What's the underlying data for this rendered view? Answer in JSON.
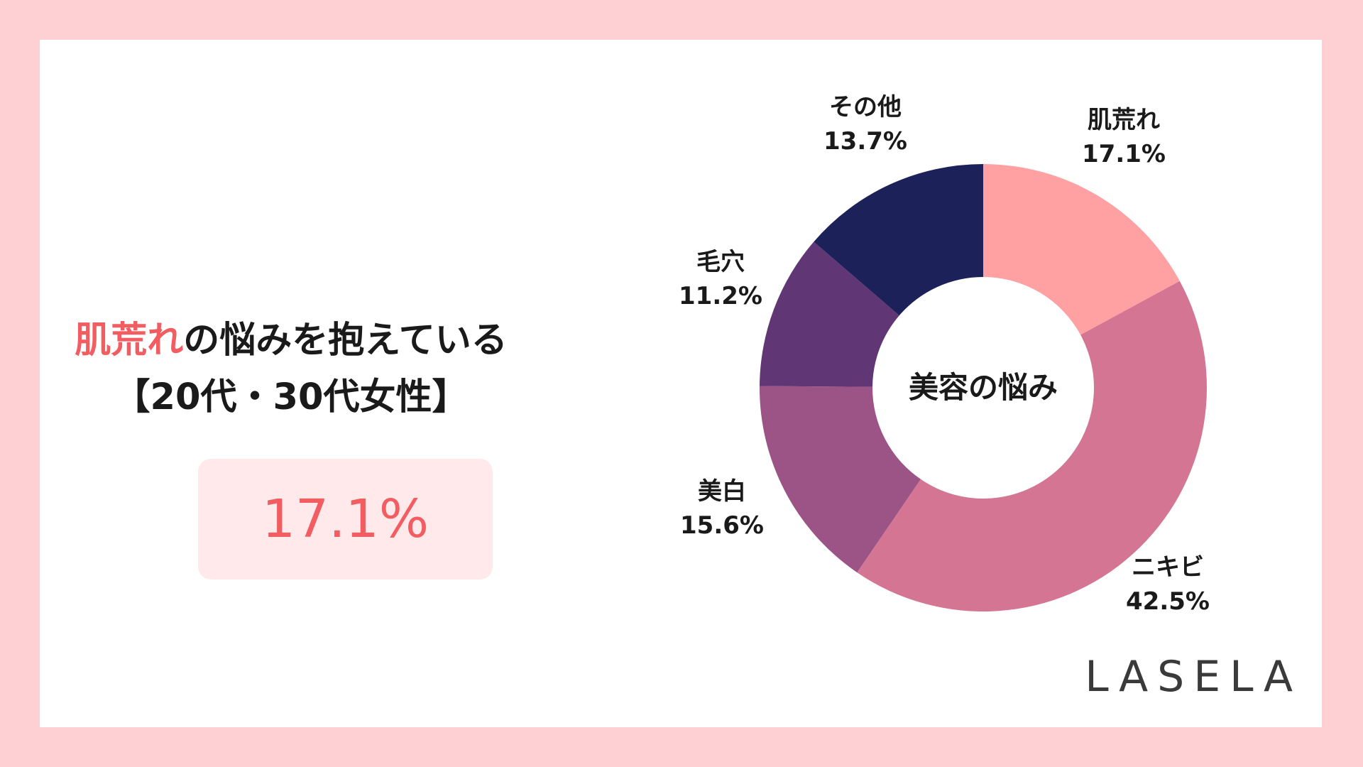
{
  "headline": {
    "highlight": "肌荒れ",
    "rest": "の悩みを抱えている",
    "line2": "【20代・30代女性】"
  },
  "stat": {
    "value": "17.1%"
  },
  "logo": "LASELA",
  "colors": {
    "frame": "#ffd0d3",
    "accent": "#f25d62",
    "stat_bg": "#ffe9ea"
  },
  "chart_data": {
    "type": "pie",
    "donut": true,
    "center_label": "美容の悩み",
    "categories": [
      "肌荒れ",
      "ニキビ",
      "美白",
      "毛穴",
      "その他"
    ],
    "values": [
      17.1,
      42.5,
      15.6,
      11.2,
      13.7
    ],
    "value_labels": [
      "17.1%",
      "42.5%",
      "15.6%",
      "11.2%",
      "13.7%"
    ],
    "colors": [
      "#ffa0a2",
      "#d47594",
      "#9c5487",
      "#613674",
      "#1c2159"
    ]
  }
}
